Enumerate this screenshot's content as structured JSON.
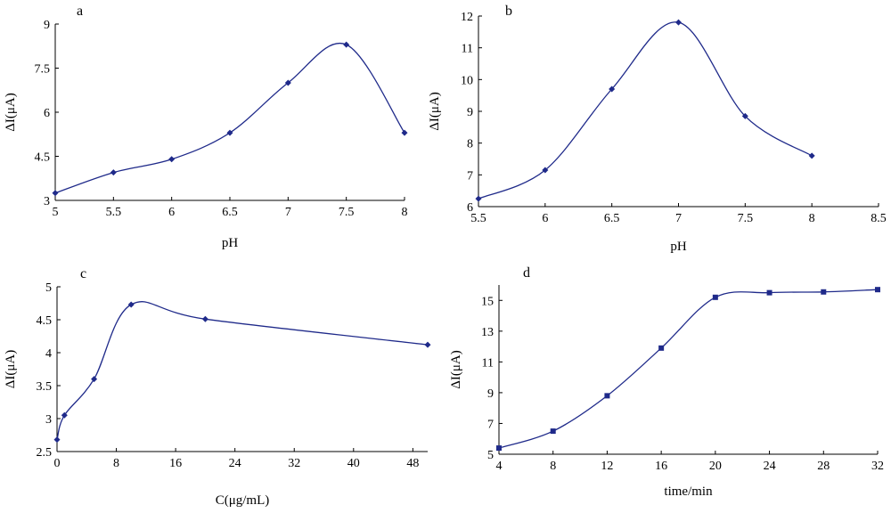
{
  "colors": {
    "line": "#1f2a8a",
    "axis": "#000000"
  },
  "chart_data": [
    {
      "type": "line",
      "panel": "a",
      "xlabel": "pH",
      "ylabel": "ΔI(μA)",
      "xlim": [
        5,
        8
      ],
      "ylim": [
        3,
        9
      ],
      "xticks": [
        5,
        5.5,
        6,
        6.5,
        7,
        7.5,
        8
      ],
      "xtick_labels": [
        "5",
        "5.5",
        "6",
        "6.5",
        "7",
        "7.5",
        "8"
      ],
      "yticks": [
        3,
        4.5,
        6,
        7.5,
        9
      ],
      "ytick_labels": [
        "3",
        "4.5",
        "6",
        "7.5",
        "9"
      ],
      "x": [
        5,
        5.5,
        6,
        6.5,
        7,
        7.5,
        8
      ],
      "y": [
        3.25,
        3.95,
        4.4,
        5.3,
        7.0,
        8.3,
        5.3
      ],
      "marker": "diamond"
    },
    {
      "type": "line",
      "panel": "b",
      "xlabel": "pH",
      "ylabel": "ΔI(μA)",
      "xlim": [
        5.5,
        8.5
      ],
      "ylim": [
        6,
        12
      ],
      "xticks": [
        5.5,
        6,
        6.5,
        7,
        7.5,
        8,
        8.5
      ],
      "xtick_labels": [
        "5.5",
        "6",
        "6.5",
        "7",
        "7.5",
        "8",
        "8.5"
      ],
      "yticks": [
        6,
        7,
        8,
        9,
        10,
        11,
        12
      ],
      "ytick_labels": [
        "6",
        "7",
        "8",
        "9",
        "10",
        "11",
        "12"
      ],
      "x": [
        5.5,
        6,
        6.5,
        7,
        7.5,
        8
      ],
      "y": [
        6.25,
        7.15,
        9.7,
        11.8,
        8.85,
        7.6
      ],
      "marker": "diamond"
    },
    {
      "type": "line",
      "panel": "c",
      "xlabel": "C(μg/mL)",
      "ylabel": "ΔI(μA)",
      "xlim": [
        0,
        50
      ],
      "ylim": [
        2.5,
        5
      ],
      "xticks": [
        0,
        8,
        16,
        24,
        32,
        40,
        48
      ],
      "xtick_labels": [
        "0",
        "8",
        "16",
        "24",
        "32",
        "40",
        "48"
      ],
      "yticks": [
        2.5,
        3,
        3.5,
        4,
        4.5,
        5
      ],
      "ytick_labels": [
        "2.5",
        "3",
        "3.5",
        "4",
        "4.5",
        "5"
      ],
      "x": [
        0,
        1,
        5,
        10,
        20,
        50
      ],
      "y": [
        2.68,
        3.05,
        3.6,
        4.73,
        4.51,
        4.12
      ],
      "marker": "diamond"
    },
    {
      "type": "line",
      "panel": "d",
      "xlabel": "time/min",
      "ylabel": "ΔI(μA)",
      "xlim": [
        4,
        32
      ],
      "ylim": [
        5,
        16
      ],
      "xticks": [
        4,
        8,
        12,
        16,
        20,
        24,
        28,
        32
      ],
      "xtick_labels": [
        "4",
        "8",
        "12",
        "16",
        "20",
        "24",
        "28",
        "32"
      ],
      "yticks": [
        5,
        7,
        9,
        11,
        13,
        15
      ],
      "ytick_labels": [
        "5",
        "7",
        "9",
        "11",
        "13",
        "15"
      ],
      "x": [
        4,
        8,
        12,
        16,
        20,
        24,
        28,
        32
      ],
      "y": [
        5.4,
        6.5,
        8.8,
        11.9,
        15.2,
        15.5,
        15.55,
        15.7
      ],
      "marker": "square"
    }
  ]
}
